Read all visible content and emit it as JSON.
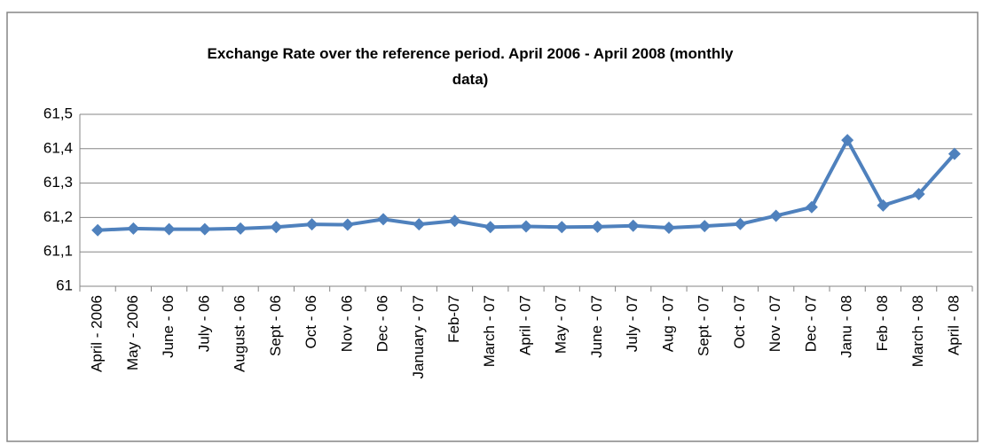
{
  "chart_data": {
    "type": "line",
    "title": "Exchange Rate over the reference period. April 2006 - April 2008 (monthly data)",
    "categories": [
      "April - 2006",
      "May - 2006",
      "June - 06",
      "July - 06",
      "August - 06",
      "Sept - 06",
      "Oct - 06",
      "Nov - 06",
      "Dec - 06",
      "January - 07",
      "Feb-07",
      "March - 07",
      "April - 07",
      "May - 07",
      "June - 07",
      "July - 07",
      "Aug - 07",
      "Sept - 07",
      "Oct - 07",
      "Nov - 07",
      "Dec - 07",
      "Janu - 08",
      "Feb - 08",
      "March - 08",
      "April - 08"
    ],
    "values": [
      61.163,
      61.168,
      61.166,
      61.166,
      61.168,
      61.172,
      61.18,
      61.179,
      61.195,
      61.18,
      61.19,
      61.172,
      61.174,
      61.172,
      61.173,
      61.176,
      61.17,
      61.175,
      61.181,
      61.205,
      61.23,
      61.425,
      61.235,
      61.268,
      61.385
    ],
    "color": "#4f81bd",
    "ylim": [
      61,
      61.5
    ],
    "yticks": [
      61,
      {
        "value": 61.1,
        "label": "61,1"
      },
      {
        "value": 61.2,
        "label": "61,2"
      },
      {
        "value": 61.3,
        "label": "61,3"
      },
      {
        "value": 61.4,
        "label": "61,4"
      },
      {
        "value": 61.5,
        "label": "61,5"
      }
    ],
    "grid": true
  }
}
